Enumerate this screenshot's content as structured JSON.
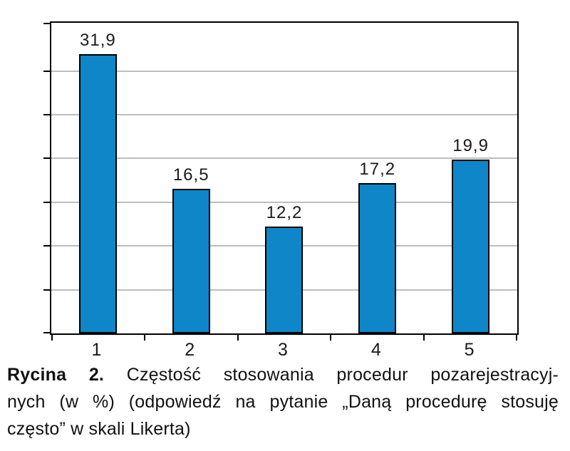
{
  "figure": {
    "caption": {
      "label_bold": "Rycina 2.",
      "line1_rest": " Częstość stosowania procedur pozarejestracyj-",
      "line2": "nych (w %) (odpowiedź na pytanie „Daną procedurę stosuję",
      "line3": "często” w skali Likerta)"
    }
  },
  "chart_data": {
    "type": "bar",
    "categories": [
      "1",
      "2",
      "3",
      "4",
      "5"
    ],
    "values": [
      31.9,
      16.5,
      12.2,
      17.2,
      19.9
    ],
    "value_labels": [
      "31,9",
      "16,5",
      "12,2",
      "17,2",
      "19,9"
    ],
    "title": "",
    "xlabel": "",
    "ylabel": "",
    "ylim": [
      0,
      35.5
    ],
    "gridline_interval": 5,
    "grid": "horizontal-only",
    "legend": "none",
    "y_axis_tick_labels": "none",
    "decimal_separator": ",",
    "colors": {
      "bar_fill": "#0e86c8",
      "bar_border": "#000000",
      "gridline": "#bdbdbd",
      "frame": "#000000",
      "text": "#1a1a1a"
    }
  }
}
